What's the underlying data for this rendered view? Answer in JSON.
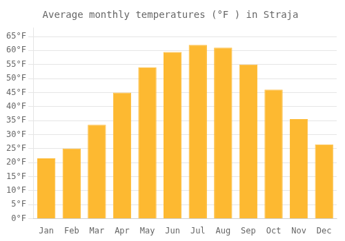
{
  "chart_data": {
    "type": "bar",
    "title": "Average monthly temperatures (°F ) in Straja",
    "categories": [
      "Jan",
      "Feb",
      "Mar",
      "Apr",
      "May",
      "Jun",
      "Jul",
      "Aug",
      "Sep",
      "Oct",
      "Nov",
      "Dec"
    ],
    "values": [
      21.5,
      25.0,
      33.5,
      45.0,
      54.0,
      59.5,
      62.0,
      61.0,
      55.0,
      46.0,
      35.5,
      26.5
    ],
    "color": "#FDB931",
    "ylim": [
      0,
      68
    ],
    "yticks": [
      {
        "value": 0,
        "label": "0°F"
      },
      {
        "value": 5,
        "label": "5°F"
      },
      {
        "value": 10,
        "label": "10°F"
      },
      {
        "value": 15,
        "label": "15°F"
      },
      {
        "value": 20,
        "label": "20°F"
      },
      {
        "value": 25,
        "label": "25°F"
      },
      {
        "value": 30,
        "label": "30°F"
      },
      {
        "value": 35,
        "label": "35°F"
      },
      {
        "value": 40,
        "label": "40°F"
      },
      {
        "value": 45,
        "label": "45°F"
      },
      {
        "value": 50,
        "label": "50°F"
      },
      {
        "value": 55,
        "label": "55°F"
      },
      {
        "value": 60,
        "label": "60°F"
      },
      {
        "value": 65,
        "label": "65°F"
      }
    ],
    "grid": true
  }
}
